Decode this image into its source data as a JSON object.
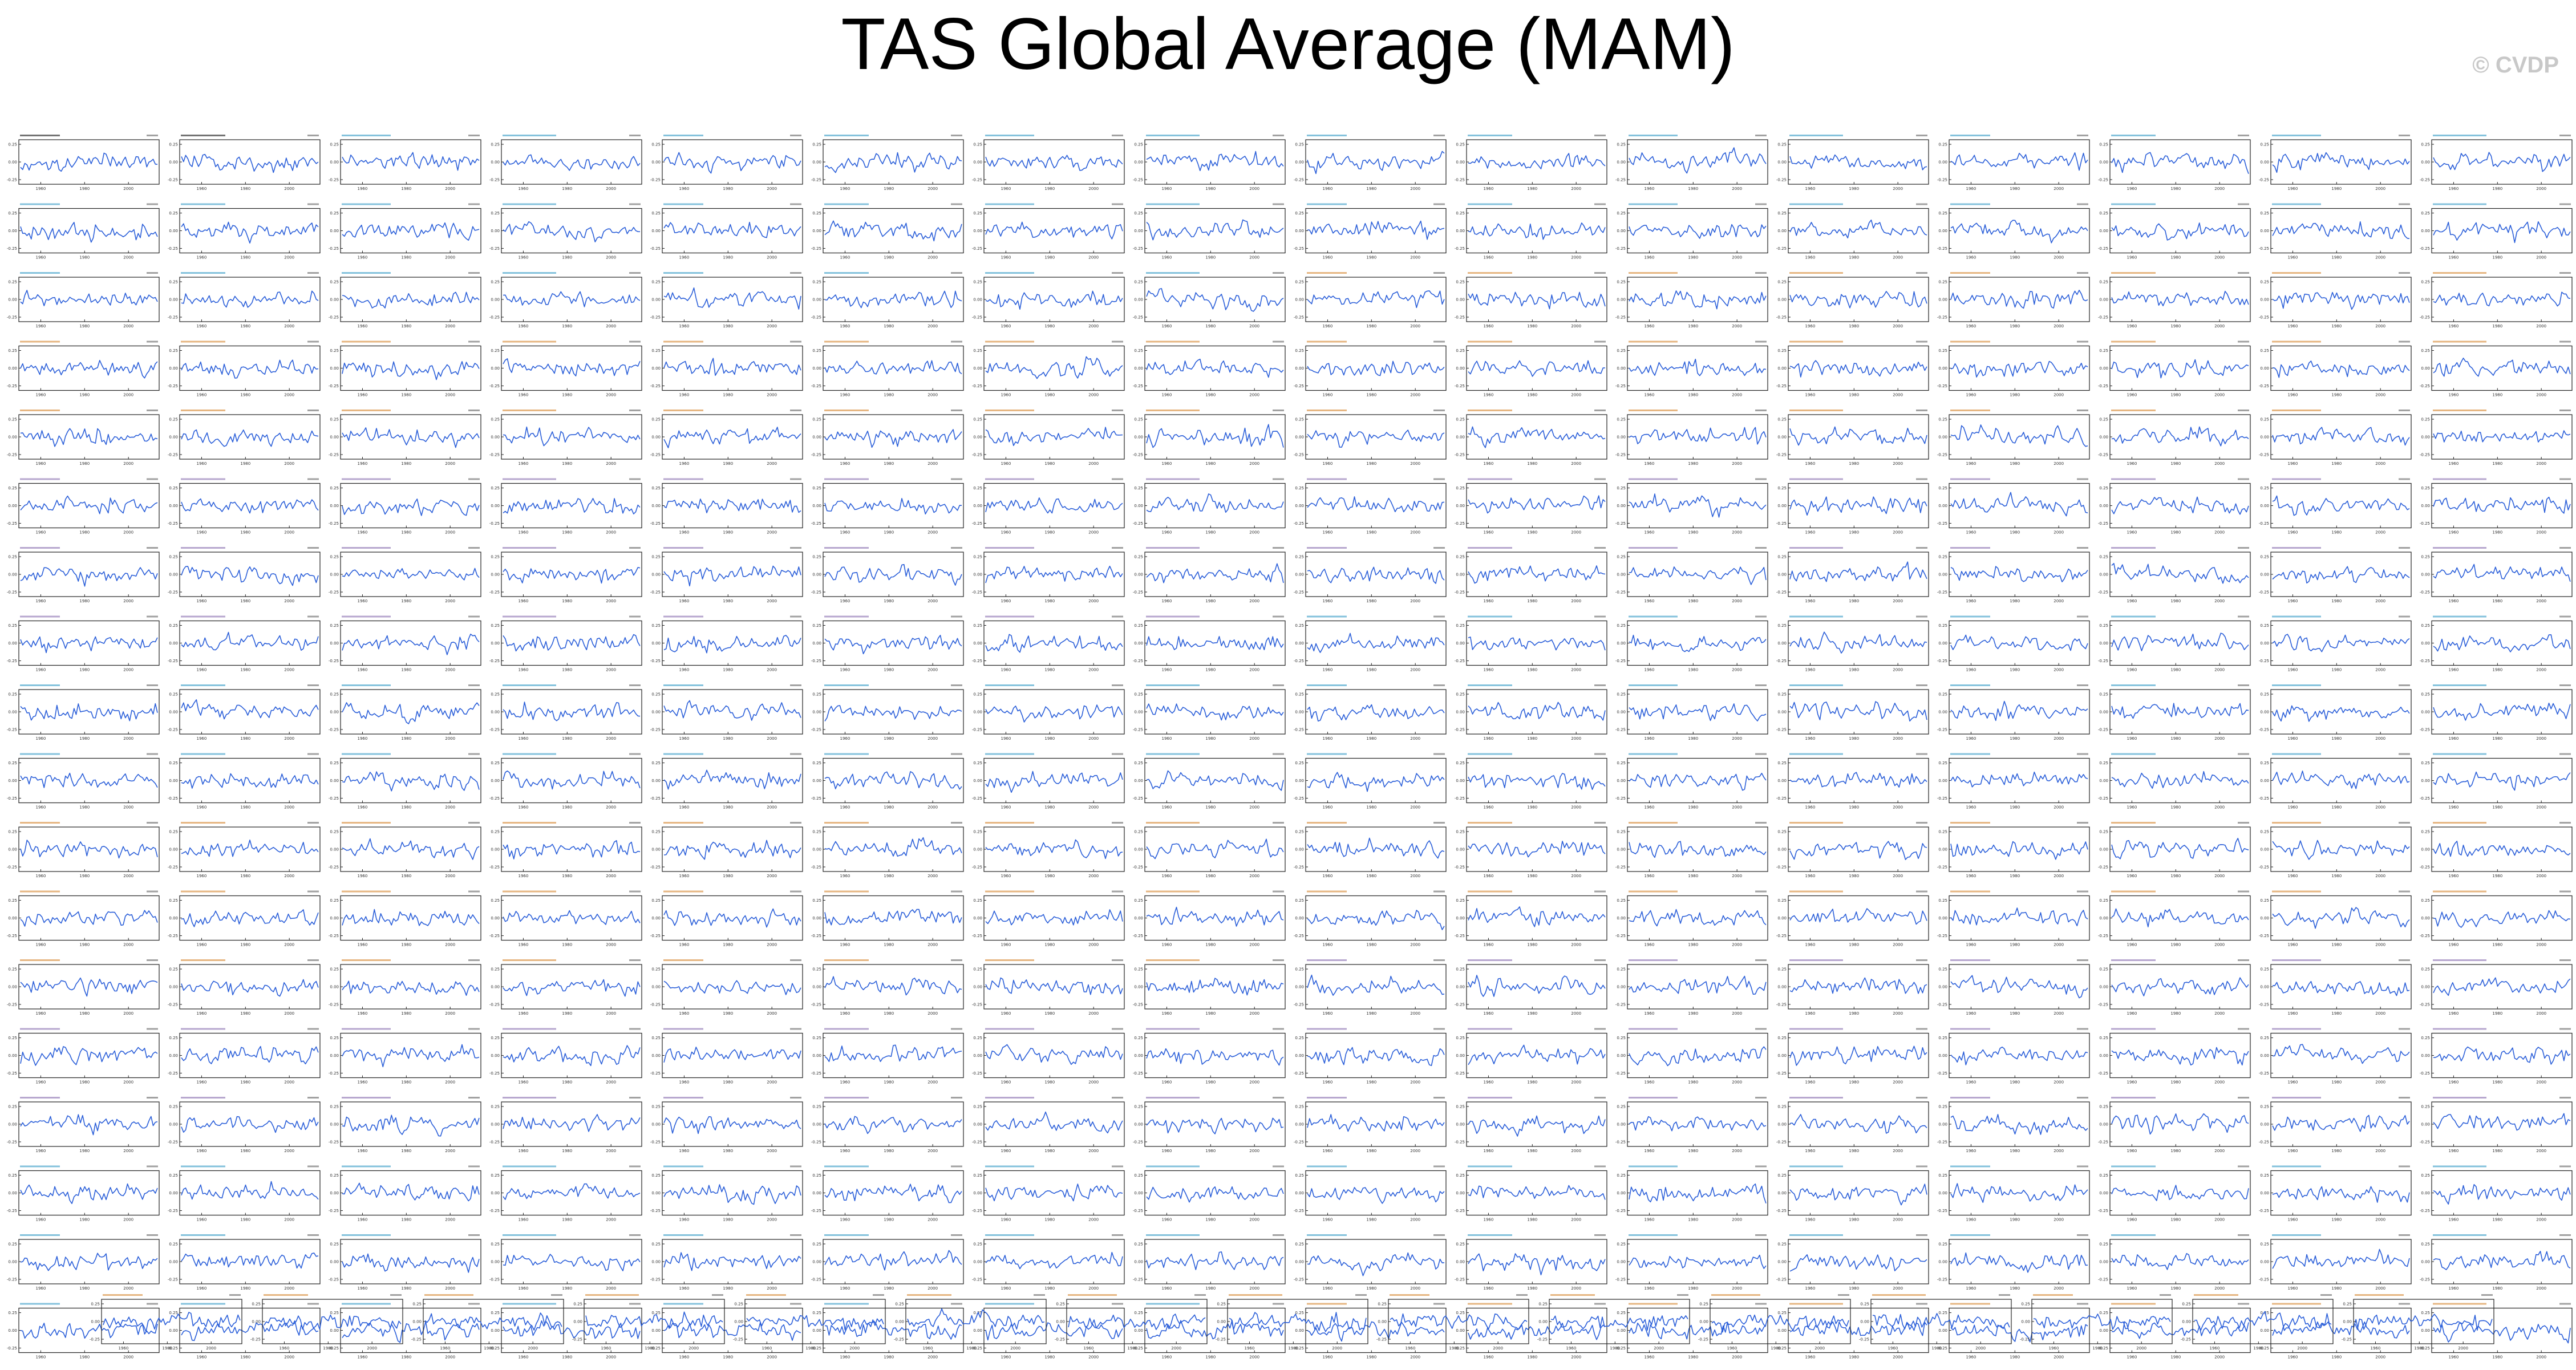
{
  "title": "TAS Global Average (MAM)",
  "watermark": "© CVDP",
  "colors": {
    "line": "#2b5fd9",
    "label_observed": "#000000",
    "label_access": "#1f8fbf",
    "label_cesm": "#d17a1c",
    "label_other": "#7b5ea7"
  },
  "chart_data": {
    "type": "line",
    "layout": "small-multiples grid: 18 rows x 16 panels plus a final centered row of 15 panels",
    "xlim": [
      1950,
      2014
    ],
    "xticks": [
      1960,
      1980,
      2000
    ],
    "yticks": [
      0.25,
      0.0,
      -0.25
    ],
    "grid": false,
    "legend": "none",
    "note": "Panel titles and per-panel values are too small to read in the source; individual series are not legible."
  }
}
